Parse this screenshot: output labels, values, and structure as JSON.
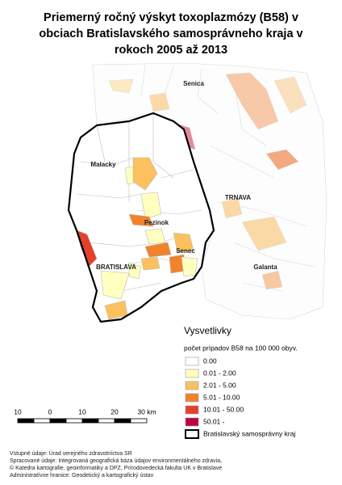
{
  "title": [
    "Priemerný ročný výskyt toxoplazmózy (B58) v",
    "obciach Bratislavského samosprávneho kraja v",
    "rokoch 2005 až 2013"
  ],
  "places": [
    "Senica",
    "Malacky",
    "TRNAVA",
    "Pezinok",
    "Senec",
    "BRATISLAVA",
    "Galanta"
  ],
  "legend": {
    "title": "Vysvetlivky",
    "subtitle": "počet prípadov B58 na 100 000 obyv.",
    "items": [
      {
        "label": "0.00",
        "color": "#ffffff"
      },
      {
        "label": "0.01 - 2.00",
        "color": "#ffffc0"
      },
      {
        "label": "2.01 - 5.00",
        "color": "#fcc15e"
      },
      {
        "label": "5.01 - 10.00",
        "color": "#f0832c"
      },
      {
        "label": "10.01 - 50.00",
        "color": "#e3412b"
      },
      {
        "label": "50.01 -",
        "color": "#c2003e"
      }
    ],
    "boundary": "Bratislavský samosprávny kraj"
  },
  "scale": [
    "10",
    "0",
    "10",
    "20",
    "30 km"
  ],
  "sources": [
    "Vstupné údaje: Úrad verejného zdravotníctva SR",
    "Spracované údaje: Integrovaná geografická báza údajov environmentálneho zdravia,",
    "© Katedra kartografie, geoinformatiky a DPZ, Prírodovedecká fakulta UK v Bratislave",
    "Administratívne hranice: Geodetický a kartografický ústav"
  ]
}
